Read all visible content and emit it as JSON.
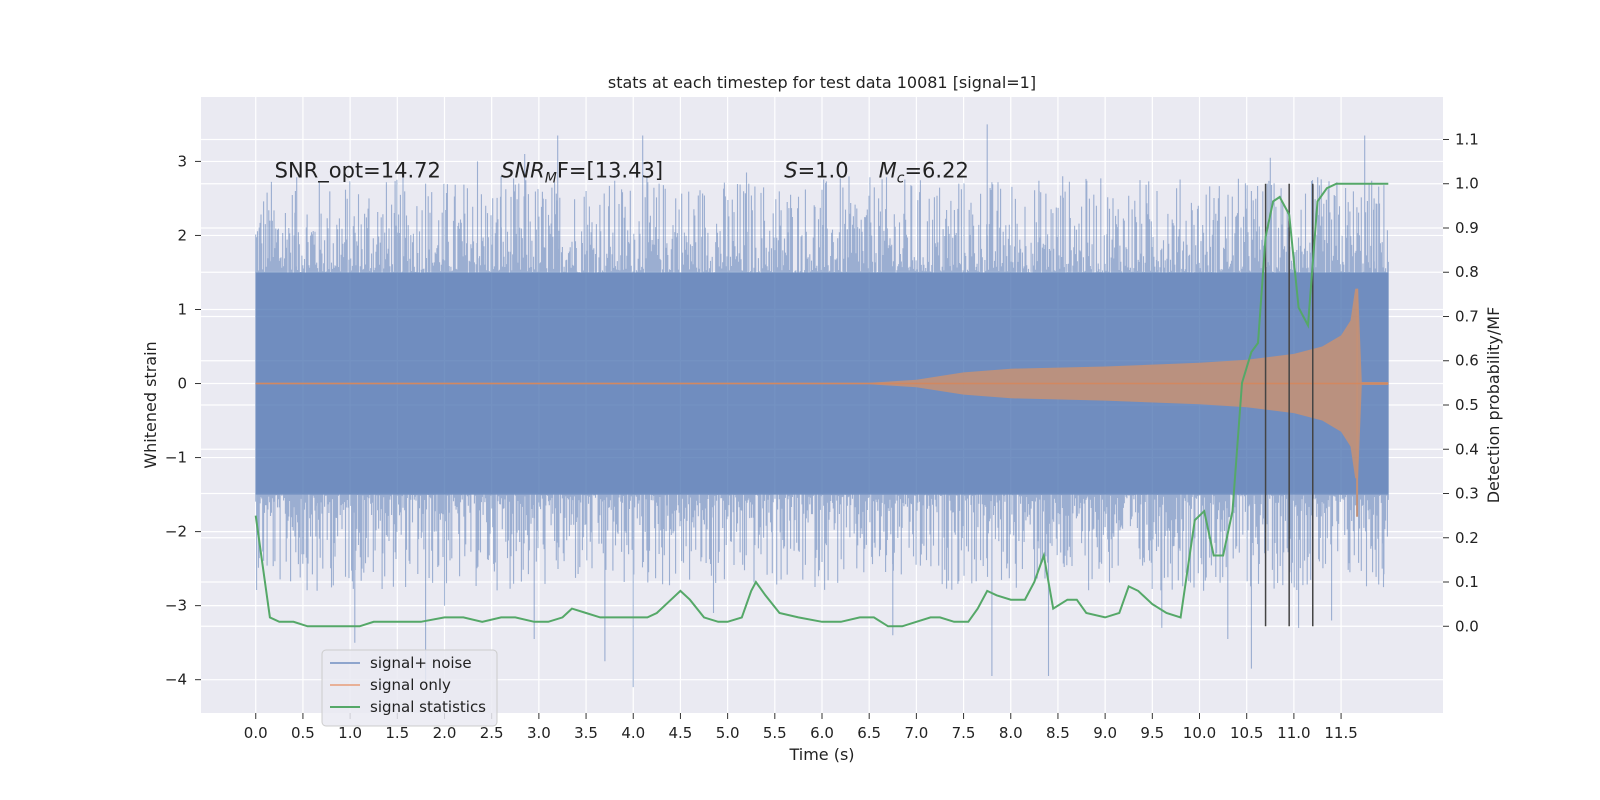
{
  "chart_data": {
    "type": "line",
    "title": "stats at each timestep for test data 10081 [signal=1]",
    "xlabel": "Time (s)",
    "ylabel_left": "Whitened strain",
    "ylabel_right": "Detection probability/MF",
    "xlim": [
      -0.58,
      12.58
    ],
    "ylim_left": [
      -4.45,
      3.87
    ],
    "ylim_right": [
      -0.196,
      1.196
    ],
    "x_ticks": [
      0.0,
      0.5,
      1.0,
      1.5,
      2.0,
      2.5,
      3.0,
      3.5,
      4.0,
      4.5,
      5.0,
      5.5,
      6.0,
      6.5,
      7.0,
      7.5,
      8.0,
      8.5,
      9.0,
      9.5,
      10.0,
      10.5,
      11.0,
      11.5
    ],
    "x_tick_labels": [
      "0.0",
      "0.5",
      "1.0",
      "1.5",
      "2.0",
      "2.5",
      "3.0",
      "3.5",
      "4.0",
      "4.5",
      "5.0",
      "5.5",
      "6.0",
      "6.5",
      "7.0",
      "7.5",
      "8.0",
      "8.5",
      "9.0",
      "9.5",
      "10.0",
      "10.5",
      "11.0",
      "11.5"
    ],
    "y_left_ticks": [
      3,
      2,
      1,
      0,
      -1,
      -2,
      -3,
      -4
    ],
    "y_left_tick_labels": [
      "3",
      "2",
      "1",
      "0",
      "−1",
      "−2",
      "−3",
      "−4"
    ],
    "y_right_ticks": [
      1.1,
      1.0,
      0.9,
      0.8,
      0.7,
      0.6,
      0.5,
      0.4,
      0.3,
      0.2,
      0.1,
      0.0
    ],
    "y_right_tick_labels": [
      "1.1",
      "1.0",
      "0.9",
      "0.8",
      "0.7",
      "0.6",
      "0.5",
      "0.4",
      "0.3",
      "0.2",
      "0.1",
      "0.0"
    ],
    "grid": true,
    "background": "#eaeaf2",
    "legend_position": "lower-left",
    "series": [
      {
        "name": "signal+ noise",
        "axis": "left",
        "color": "#4c72b0",
        "alpha": 0.5,
        "t_range": [
          0.0,
          12.0
        ],
        "envelope": {
          "core_upper": 1.5,
          "core_lower": -1.5,
          "spikes_upper": [
            [
              0.15,
              2.2
            ],
            [
              0.35,
              2.1
            ],
            [
              0.42,
              2.6
            ],
            [
              1.2,
              2.5
            ],
            [
              1.8,
              2.7
            ],
            [
              2.35,
              3.0
            ],
            [
              2.6,
              2.8
            ],
            [
              2.85,
              3.1
            ],
            [
              3.2,
              3.35
            ],
            [
              3.5,
              2.6
            ],
            [
              4.1,
              3.35
            ],
            [
              4.45,
              2.5
            ],
            [
              5.2,
              2.85
            ],
            [
              6.6,
              2.5
            ],
            [
              7.45,
              2.7
            ],
            [
              7.75,
              3.5
            ],
            [
              8.3,
              2.6
            ],
            [
              8.55,
              2.8
            ],
            [
              9.55,
              2.6
            ],
            [
              10.55,
              2.6
            ],
            [
              10.75,
              3.05
            ],
            [
              10.95,
              2.4
            ],
            [
              11.75,
              3.35
            ],
            [
              11.85,
              2.5
            ]
          ],
          "spikes_lower": [
            [
              0.65,
              -2.8
            ],
            [
              1.05,
              -3.5
            ],
            [
              1.8,
              -4.05
            ],
            [
              2.0,
              -3.0
            ],
            [
              2.95,
              -3.45
            ],
            [
              3.7,
              -3.75
            ],
            [
              4.0,
              -4.1
            ],
            [
              4.85,
              -3.1
            ],
            [
              6.75,
              -3.4
            ],
            [
              7.8,
              -3.95
            ],
            [
              8.4,
              -3.95
            ],
            [
              9.6,
              -3.3
            ],
            [
              10.3,
              -3.45
            ],
            [
              10.55,
              -3.85
            ],
            [
              11.05,
              -3.3
            ],
            [
              11.4,
              -3.2
            ],
            [
              11.95,
              -2.75
            ]
          ]
        }
      },
      {
        "name": "signal only",
        "axis": "left",
        "color": "#dd8452",
        "alpha": 0.5,
        "envelope": {
          "t": [
            0.0,
            6.5,
            7.0,
            7.5,
            8.0,
            9.0,
            10.0,
            10.5,
            11.0,
            11.3,
            11.5,
            11.6,
            11.65,
            11.68,
            11.72,
            12.0
          ],
          "amp": [
            0.01,
            0.01,
            0.05,
            0.15,
            0.2,
            0.23,
            0.28,
            0.32,
            0.4,
            0.5,
            0.65,
            0.85,
            1.28,
            1.28,
            0.02,
            0.02
          ]
        }
      },
      {
        "name": "signal statistics",
        "axis": "right",
        "color": "#55a868",
        "x": [
          0.0,
          0.15,
          0.25,
          0.4,
          0.55,
          0.7,
          0.9,
          1.1,
          1.25,
          1.5,
          1.75,
          2.0,
          2.2,
          2.4,
          2.6,
          2.75,
          2.95,
          3.1,
          3.25,
          3.35,
          3.5,
          3.65,
          3.85,
          4.0,
          4.15,
          4.25,
          4.4,
          4.5,
          4.6,
          4.75,
          4.9,
          5.0,
          5.15,
          5.25,
          5.3,
          5.4,
          5.55,
          5.75,
          6.0,
          6.2,
          6.4,
          6.55,
          6.7,
          6.85,
          7.0,
          7.15,
          7.25,
          7.4,
          7.55,
          7.65,
          7.75,
          7.85,
          8.0,
          8.15,
          8.25,
          8.35,
          8.45,
          8.6,
          8.7,
          8.8,
          9.0,
          9.15,
          9.25,
          9.35,
          9.5,
          9.65,
          9.8,
          9.95,
          10.05,
          10.15,
          10.25,
          10.35,
          10.45,
          10.55,
          10.62,
          10.7,
          10.78,
          10.85,
          10.95,
          11.05,
          11.15,
          11.25,
          11.35,
          11.45,
          11.6,
          11.75,
          11.9,
          12.0
        ],
        "y": [
          0.25,
          0.02,
          0.01,
          0.01,
          0.0,
          0.0,
          0.0,
          0.0,
          0.01,
          0.01,
          0.01,
          0.02,
          0.02,
          0.01,
          0.02,
          0.02,
          0.01,
          0.01,
          0.02,
          0.04,
          0.03,
          0.02,
          0.02,
          0.02,
          0.02,
          0.03,
          0.06,
          0.08,
          0.06,
          0.02,
          0.01,
          0.01,
          0.02,
          0.08,
          0.1,
          0.07,
          0.03,
          0.02,
          0.01,
          0.01,
          0.02,
          0.02,
          0.0,
          0.0,
          0.01,
          0.02,
          0.02,
          0.01,
          0.01,
          0.04,
          0.08,
          0.07,
          0.06,
          0.06,
          0.1,
          0.16,
          0.04,
          0.06,
          0.06,
          0.03,
          0.02,
          0.03,
          0.09,
          0.08,
          0.05,
          0.03,
          0.02,
          0.24,
          0.26,
          0.16,
          0.16,
          0.26,
          0.55,
          0.62,
          0.64,
          0.88,
          0.96,
          0.97,
          0.93,
          0.72,
          0.68,
          0.96,
          0.99,
          1.0,
          1.0,
          1.0,
          1.0,
          1.0
        ]
      }
    ],
    "vertical_markers": [
      10.7,
      10.95,
      11.2
    ],
    "annotations": [
      {
        "text": "SNR_opt=14.72",
        "x": 0.2,
        "y": 2.78
      },
      {
        "text_main": "SNR",
        "text_sub": "M",
        "text_tail": "F=[13.43]",
        "x": 2.6,
        "y": 2.78
      },
      {
        "text_main": "S",
        "text_tail": "=1.0",
        "x": 5.6,
        "y": 2.78
      },
      {
        "text_main": "M",
        "text_sub": "c",
        "text_tail": "=6.22",
        "x": 6.6,
        "y": 2.78
      }
    ]
  }
}
